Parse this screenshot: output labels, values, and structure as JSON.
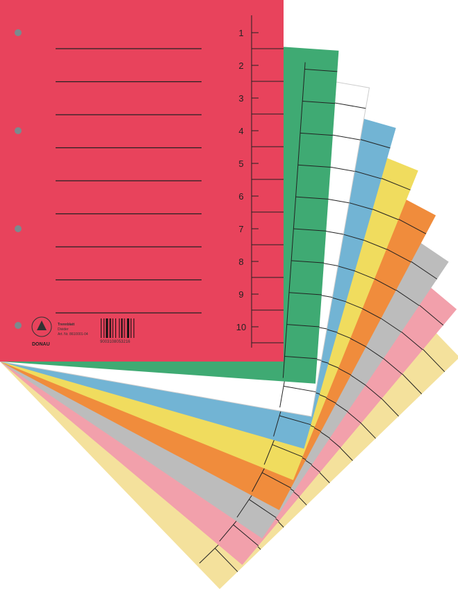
{
  "product": {
    "tab_numbers": [
      "1",
      "2",
      "3",
      "4",
      "5",
      "6",
      "7",
      "8",
      "9",
      "10"
    ],
    "label_title": "Trennblatt",
    "label_subtitle": "Divider",
    "article_number": "Art. Nr. 8610001-04",
    "barcode_digits": "9003108053216",
    "brand": "DONAU"
  },
  "colors": {
    "red": "#e8435c",
    "sheets": [
      "#3faa73",
      "#ffffff",
      "#72b4d4",
      "#f0dc5e",
      "#f08c3c",
      "#bcbcbc",
      "#f2a0ab",
      "#f4e19c"
    ]
  }
}
